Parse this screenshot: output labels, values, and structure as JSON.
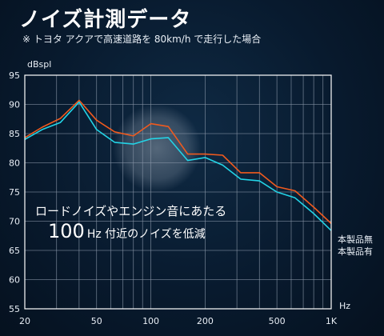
{
  "header": {
    "title": "ノイズ計測データ",
    "subtitle": "※ トヨタ アクアで高速道路を 80km/h で走行した場合"
  },
  "chart_data": {
    "type": "line",
    "ylabel": "dBspl",
    "xlabel": "Hz",
    "x_scale": "log",
    "xlim": [
      20,
      1000
    ],
    "ylim": [
      55,
      95
    ],
    "grid": true,
    "y_ticks": [
      55,
      60,
      65,
      70,
      75,
      80,
      85,
      90,
      95
    ],
    "x_ticks": [
      {
        "value": 20,
        "label": "20"
      },
      {
        "value": 50,
        "label": "50"
      },
      {
        "value": 100,
        "label": "100"
      },
      {
        "value": 200,
        "label": "200"
      },
      {
        "value": 500,
        "label": "500"
      },
      {
        "value": 1000,
        "label": "1K"
      }
    ],
    "x_grid": [
      20,
      30,
      40,
      50,
      60,
      70,
      80,
      90,
      100,
      200,
      300,
      400,
      500,
      600,
      700,
      800,
      900,
      1000
    ],
    "series": [
      {
        "name": "本製品無",
        "color": "#f05a1e",
        "points": [
          [
            20,
            84.3
          ],
          [
            25,
            86.1
          ],
          [
            31.5,
            87.6
          ],
          [
            40,
            90.7
          ],
          [
            50,
            87.3
          ],
          [
            63,
            85.3
          ],
          [
            80,
            84.6
          ],
          [
            100,
            86.7
          ],
          [
            125,
            86.2
          ],
          [
            160,
            81.5
          ],
          [
            200,
            81.5
          ],
          [
            250,
            81.3
          ],
          [
            315,
            78.3
          ],
          [
            400,
            78.3
          ],
          [
            500,
            75.9
          ],
          [
            630,
            75.2
          ],
          [
            800,
            72.4
          ],
          [
            1000,
            69.6
          ],
          [
            1250,
            67.3
          ]
        ]
      },
      {
        "name": "本製品有",
        "color": "#23d3e6",
        "points": [
          [
            20,
            84.0
          ],
          [
            25,
            85.7
          ],
          [
            31.5,
            86.9
          ],
          [
            40,
            90.4
          ],
          [
            50,
            85.7
          ],
          [
            63,
            83.5
          ],
          [
            80,
            83.2
          ],
          [
            100,
            84.1
          ],
          [
            125,
            84.3
          ],
          [
            160,
            80.4
          ],
          [
            200,
            80.9
          ],
          [
            250,
            79.6
          ],
          [
            315,
            77.2
          ],
          [
            400,
            76.9
          ],
          [
            500,
            75.0
          ],
          [
            630,
            74.0
          ],
          [
            800,
            71.3
          ],
          [
            1000,
            68.4
          ],
          [
            1250,
            65.8
          ]
        ]
      }
    ],
    "annotation": {
      "line1": "ロードノイズやエンジン音にあたる",
      "line2_num": "100",
      "line2_unit": "Hz",
      "line2_rest": " 付近のノイズを低減"
    }
  },
  "colors": {
    "background": "#081a2e",
    "grid": "#8a97a8",
    "frame": "#ffffff",
    "highlight": "#b9c2cf"
  }
}
